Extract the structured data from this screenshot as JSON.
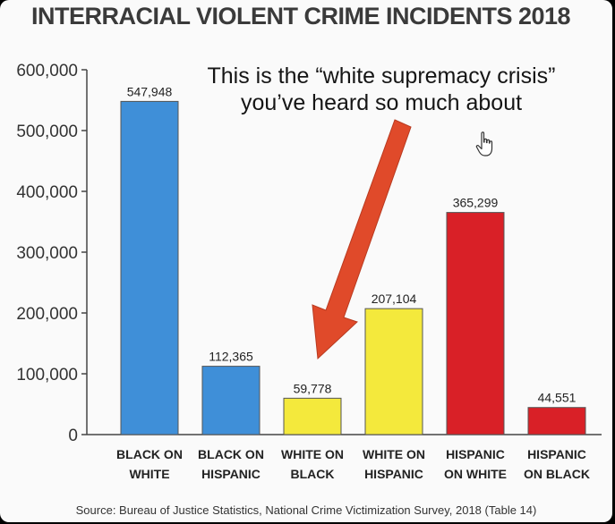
{
  "chart_data": {
    "type": "bar",
    "title": "INTERRACIAL VIOLENT CRIME INCIDENTS 2018",
    "categories": [
      [
        "BLACK ON",
        "WHITE"
      ],
      [
        "BLACK ON",
        "HISPANIC"
      ],
      [
        "WHITE ON",
        "BLACK"
      ],
      [
        "WHITE ON",
        "HISPANIC"
      ],
      [
        "HISPANIC",
        "ON WHITE"
      ],
      [
        "HISPANIC",
        "ON BLACK"
      ]
    ],
    "values": [
      547948,
      112365,
      59778,
      207104,
      365299,
      44551
    ],
    "value_labels": [
      "547,948",
      "112,365",
      "59,778",
      "207,104",
      "365,299",
      "44,551"
    ],
    "bar_colors": [
      "#3f8fd8",
      "#3f8fd8",
      "#f4e93c",
      "#f4e93c",
      "#d92027",
      "#d92027"
    ],
    "ylim": [
      0,
      600000
    ],
    "yticks": [
      0,
      100000,
      200000,
      300000,
      400000,
      500000,
      600000
    ],
    "ytick_labels": [
      "0",
      "100,000",
      "200,000",
      "300,000",
      "400,000",
      "500,000",
      "600,000"
    ],
    "grid": false,
    "annotations": [
      "This is the “white supremacy crisis”",
      "you’ve heard so much about"
    ],
    "arrow_color": "#e04a2a",
    "source": "Source: Bureau of Justice Statistics, National Crime Victimization Survey, 2018 (Table 14)"
  }
}
